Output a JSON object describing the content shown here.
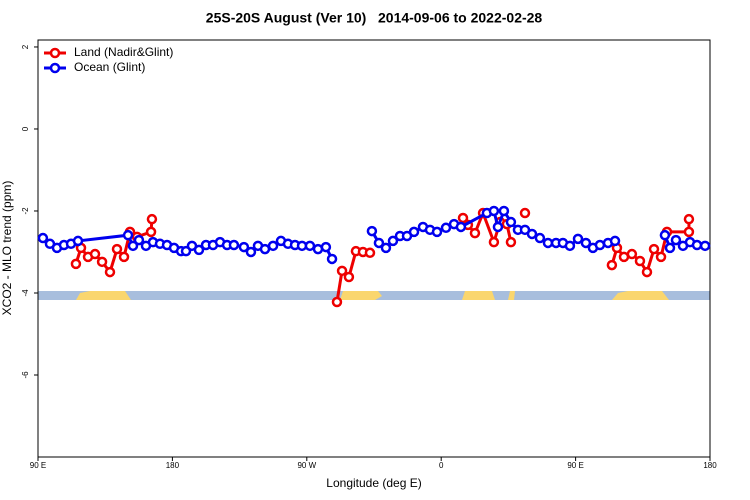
{
  "chart_data": {
    "type": "line",
    "title": "25S-20S August (Ver 10)   2014-09-06 to 2022-02-28",
    "xlabel": "Longitude (deg E)",
    "ylabel": "XCO2 - MLO trend (ppm)",
    "xlim": [
      90,
      540
    ],
    "ylim": [
      -8,
      2.17
    ],
    "xticks": [
      {
        "value": 90,
        "label": "90 E"
      },
      180,
      {
        "value": 270,
        "label": "90 W"
      },
      {
        "value": 360,
        "label": "0"
      },
      {
        "value": 450,
        "label": "90 E"
      },
      {
        "value": 540,
        "label": "180"
      }
    ],
    "yticks": [
      2,
      0,
      -2,
      -4,
      -6
    ],
    "legend": "top-left",
    "series": [
      {
        "name": "Land (Nadir&Glint)",
        "color": "#ee0000",
        "x": [
          115.4,
          118.8,
          123.5,
          128.2,
          132.9,
          138.2,
          142.9,
          147.6,
          151.6,
          156.3,
          165.7,
          166.3,
          null,
          290.2,
          293.6,
          298.2,
          302.9,
          307.6,
          312.3,
          null,
          374.6,
          377.9,
          382.6,
          388.0,
          395.3,
          399.4,
          404.0,
          406.7,
          null,
          416.1,
          null,
          474.3,
          477.7,
          482.4,
          487.7,
          493.1,
          497.8,
          502.5,
          507.2,
          511.2,
          525.9,
          525.9
        ],
        "values": [
          -3.29,
          -2.9,
          -3.12,
          -3.05,
          -3.24,
          -3.49,
          -2.93,
          -3.12,
          -2.51,
          -2.63,
          -2.51,
          -2.2,
          null,
          -4.22,
          -3.46,
          -3.61,
          -2.98,
          -3.0,
          -3.02,
          null,
          -2.17,
          -2.34,
          -2.54,
          -2.05,
          -2.76,
          -2.27,
          -2.32,
          -2.76,
          null,
          -2.05,
          null,
          -3.32,
          -2.9,
          -3.12,
          -3.05,
          -3.22,
          -3.49,
          -2.93,
          -3.12,
          -2.51,
          -2.51,
          -2.2
        ]
      },
      {
        "name": "Ocean (Glint)",
        "color": "#0000ee",
        "x": [
          93.3,
          98.0,
          102.7,
          107.4,
          112.1,
          116.8,
          150.3,
          153.6,
          157.6,
          162.3,
          167.0,
          171.7,
          176.4,
          181.1,
          185.8,
          189.1,
          193.1,
          197.8,
          202.5,
          207.2,
          211.9,
          216.6,
          221.2,
          227.9,
          232.6,
          237.3,
          242.0,
          247.4,
          252.7,
          257.4,
          262.1,
          266.8,
          272.1,
          277.5,
          282.8,
          286.9,
          null,
          313.6,
          318.3,
          323.0,
          327.7,
          332.4,
          337.1,
          341.8,
          347.8,
          352.5,
          357.2,
          363.2,
          368.6,
          373.2,
          390.6,
          395.3,
          398.0,
          402.0,
          406.7,
          411.4,
          416.1,
          420.8,
          426.1,
          431.5,
          436.9,
          441.5,
          446.2,
          451.6,
          456.9,
          461.6,
          466.3,
          471.7,
          476.4,
          null,
          509.8,
          513.2,
          517.2,
          521.9,
          526.6,
          531.3,
          536.7
        ],
        "values": [
          -2.66,
          -2.8,
          -2.9,
          -2.83,
          -2.8,
          -2.73,
          -2.59,
          -2.85,
          -2.71,
          -2.85,
          -2.76,
          -2.8,
          -2.83,
          -2.9,
          -2.98,
          -2.98,
          -2.85,
          -2.95,
          -2.83,
          -2.83,
          -2.76,
          -2.83,
          -2.83,
          -2.88,
          -3.0,
          -2.85,
          -2.93,
          -2.85,
          -2.73,
          -2.8,
          -2.83,
          -2.85,
          -2.85,
          -2.93,
          -2.88,
          -3.17,
          null,
          -2.49,
          -2.78,
          -2.9,
          -2.73,
          -2.61,
          -2.61,
          -2.51,
          -2.39,
          -2.46,
          -2.51,
          -2.41,
          -2.32,
          -2.39,
          -2.05,
          -2.0,
          -2.39,
          -2.0,
          -2.27,
          -2.46,
          -2.46,
          -2.56,
          -2.66,
          -2.78,
          -2.78,
          -2.78,
          -2.85,
          -2.68,
          -2.78,
          -2.9,
          -2.83,
          -2.78,
          -2.73,
          null,
          -2.59,
          -2.9,
          -2.71,
          -2.85,
          -2.76,
          -2.83,
          -2.85
        ]
      }
    ]
  }
}
